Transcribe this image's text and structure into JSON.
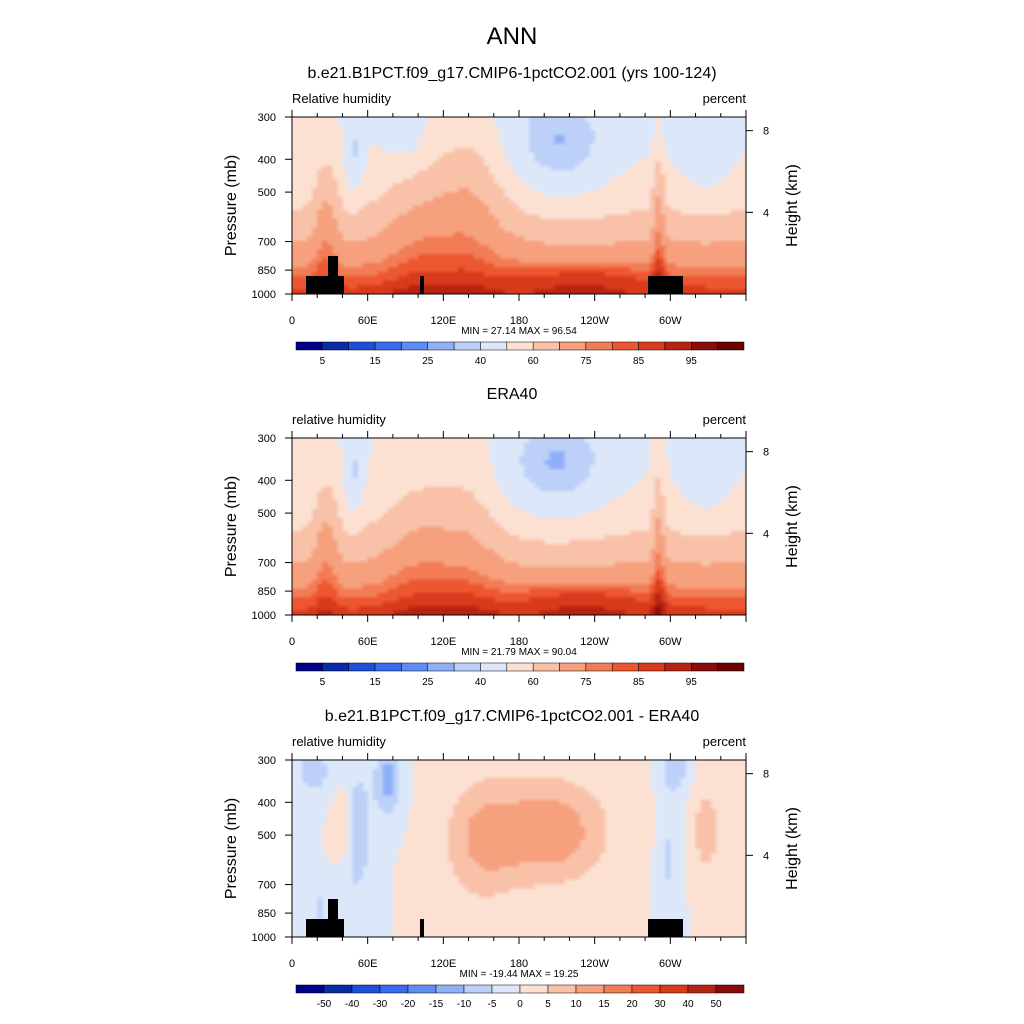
{
  "figure_title": "ANN",
  "chart_data": [
    {
      "type": "heatmap",
      "title": "b.e21.B1PCT.f09_g17.CMIP6-1pctCO2.001 (yrs 100-124)",
      "left_label": "Relative humidity",
      "right_label": "percent",
      "ylabel": "Pressure (mb)",
      "y2label": "Height (km)",
      "x_ticks": [
        "0",
        "60E",
        "120E",
        "180",
        "120W",
        "60W"
      ],
      "y_ticks": [
        "300",
        "400",
        "500",
        "700",
        "850",
        "1000"
      ],
      "y2_ticks": [
        "8",
        "4"
      ],
      "min_max_text": "MIN =  27.14  MAX =  96.54",
      "min": 27.14,
      "max": 96.54,
      "kind": "abs",
      "terrain": true,
      "colorbar": {
        "labels": [
          "5",
          "15",
          "25",
          "40",
          "60",
          "75",
          "85",
          "95"
        ],
        "colors": [
          "#00008B",
          "#0A2BA8",
          "#1E4FD8",
          "#3A6AF0",
          "#5E8CF5",
          "#8FB0F7",
          "#BDD1F8",
          "#DCE8FA",
          "#FCE0D2",
          "#F9C1A8",
          "#F6A07E",
          "#F27C55",
          "#EC5630",
          "#D83A1C",
          "#B52312",
          "#8B0A0A",
          "#6B0000"
        ]
      }
    },
    {
      "type": "heatmap",
      "title": "ERA40",
      "left_label": "relative humidity",
      "right_label": "percent",
      "ylabel": "Pressure (mb)",
      "y2label": "Height (km)",
      "x_ticks": [
        "0",
        "60E",
        "120E",
        "180",
        "120W",
        "60W"
      ],
      "y_ticks": [
        "300",
        "400",
        "500",
        "700",
        "850",
        "1000"
      ],
      "y2_ticks": [
        "8",
        "4"
      ],
      "min_max_text": "MIN =  21.79  MAX =  90.04",
      "min": 21.79,
      "max": 90.04,
      "kind": "abs",
      "terrain": false,
      "colorbar": {
        "labels": [
          "5",
          "15",
          "25",
          "40",
          "60",
          "75",
          "85",
          "95"
        ],
        "colors": [
          "#00008B",
          "#0A2BA8",
          "#1E4FD8",
          "#3A6AF0",
          "#5E8CF5",
          "#8FB0F7",
          "#BDD1F8",
          "#DCE8FA",
          "#FCE0D2",
          "#F9C1A8",
          "#F6A07E",
          "#F27C55",
          "#EC5630",
          "#D83A1C",
          "#B52312",
          "#8B0A0A",
          "#6B0000"
        ]
      }
    },
    {
      "type": "heatmap",
      "title": "b.e21.B1PCT.f09_g17.CMIP6-1pctCO2.001 - ERA40",
      "left_label": "relative humidity",
      "right_label": "percent",
      "ylabel": "Pressure (mb)",
      "y2label": "Height (km)",
      "x_ticks": [
        "0",
        "60E",
        "120E",
        "180",
        "120W",
        "60W"
      ],
      "y_ticks": [
        "300",
        "400",
        "500",
        "700",
        "850",
        "1000"
      ],
      "y2_ticks": [
        "8",
        "4"
      ],
      "min_max_text": "MIN = -19.44  MAX =  19.25",
      "min": -19.44,
      "max": 19.25,
      "kind": "diff",
      "terrain": true,
      "colorbar": {
        "labels": [
          "-50",
          "-40",
          "-30",
          "-20",
          "-15",
          "-10",
          "-5",
          "0",
          "5",
          "10",
          "15",
          "20",
          "30",
          "40",
          "50"
        ],
        "colors": [
          "#00008B",
          "#0A2BA8",
          "#1E4FD8",
          "#3A6AF0",
          "#5E8CF5",
          "#8FB0F7",
          "#BDD1F8",
          "#DCE8FA",
          "#FCE0D2",
          "#F9C1A8",
          "#F6A07E",
          "#F27C55",
          "#EC5630",
          "#D83A1C",
          "#B52312",
          "#8B0A0A"
        ]
      }
    }
  ]
}
